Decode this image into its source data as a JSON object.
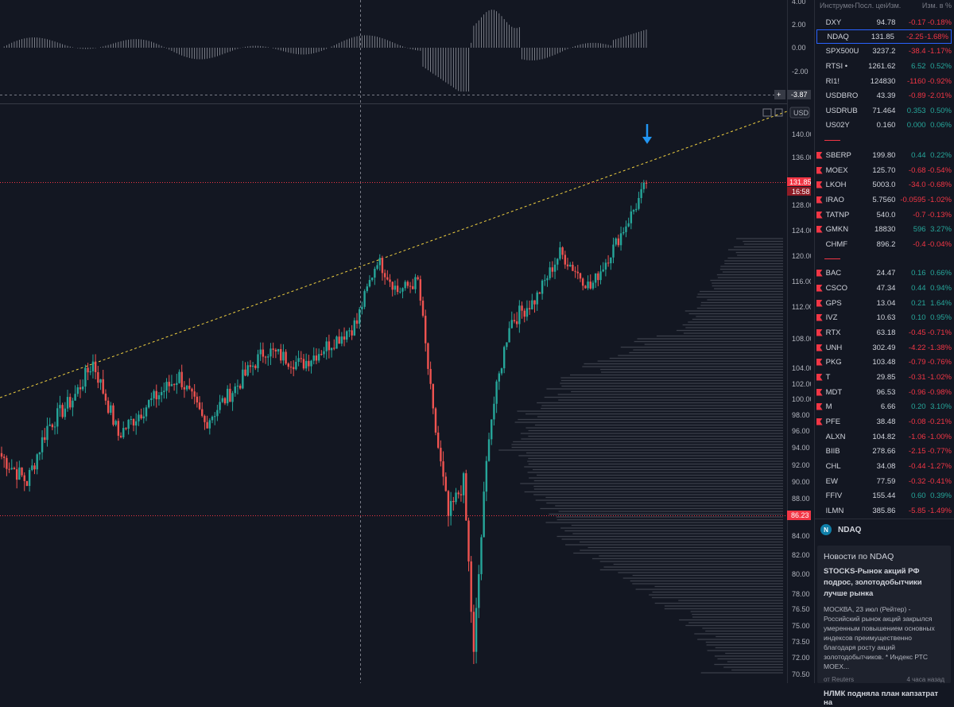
{
  "chart": {
    "currency": "USD",
    "price_label": "131.85",
    "countdown": "16:58",
    "level_label": "86.23",
    "oscillator_label": "-3.87",
    "price_ticks": [
      "140.00",
      "136.00",
      "132.00",
      "128.00",
      "124.00",
      "120.00",
      "116.00",
      "112.00",
      "108.00",
      "104.00",
      "102.00",
      "100.00",
      "98.00",
      "96.00",
      "94.00",
      "92.00",
      "90.00",
      "88.00",
      "86.00",
      "84.00",
      "82.00",
      "80.00",
      "78.00",
      "76.50",
      "75.00",
      "73.50",
      "72.00",
      "70.50"
    ],
    "osc_ticks": [
      "4.00",
      "2.00",
      "0.00",
      "-2.00"
    ],
    "colors": {
      "up": "#26a69a",
      "down": "#ef5350",
      "trend": "#f0d040",
      "level": "#f23645",
      "arrow": "#2196f3"
    }
  },
  "chart_data": {
    "type": "candlestick",
    "symbol": "NDAQ",
    "last_price": 131.85,
    "support_level": 86.23,
    "oscillator_last": -3.87,
    "y_range": [
      70.5,
      140
    ],
    "anchors": [
      {
        "i": 0,
        "c": 93.0
      },
      {
        "i": 10,
        "c": 90.0
      },
      {
        "i": 18,
        "c": 96.5
      },
      {
        "i": 28,
        "c": 100.0
      },
      {
        "i": 36,
        "c": 104.8
      },
      {
        "i": 46,
        "c": 95.5
      },
      {
        "i": 58,
        "c": 99.5
      },
      {
        "i": 70,
        "c": 103.0
      },
      {
        "i": 80,
        "c": 97.0
      },
      {
        "i": 92,
        "c": 101.5
      },
      {
        "i": 104,
        "c": 106.5
      },
      {
        "i": 118,
        "c": 104.5
      },
      {
        "i": 130,
        "c": 107.5
      },
      {
        "i": 140,
        "c": 110.0
      },
      {
        "i": 148,
        "c": 119.5
      },
      {
        "i": 156,
        "c": 114.5
      },
      {
        "i": 164,
        "c": 116.0
      },
      {
        "i": 170,
        "c": 98.0
      },
      {
        "i": 176,
        "c": 86.0
      },
      {
        "i": 182,
        "c": 90.0
      },
      {
        "i": 186,
        "c": 72.0
      },
      {
        "i": 192,
        "c": 96.0
      },
      {
        "i": 200,
        "c": 110.0
      },
      {
        "i": 210,
        "c": 113.0
      },
      {
        "i": 220,
        "c": 120.5
      },
      {
        "i": 232,
        "c": 115.0
      },
      {
        "i": 242,
        "c": 122.0
      },
      {
        "i": 250,
        "c": 128.0
      },
      {
        "i": 254,
        "c": 131.85
      }
    ]
  },
  "watchlist": {
    "headers": [
      "Инструмент",
      "Посл. цен",
      "Изм.",
      "Изм. в %"
    ],
    "rows": [
      {
        "sym": "DXY",
        "last": "94.78",
        "chg": "-0.17",
        "pct": "-0.18%",
        "dir": "neg",
        "flag": false
      },
      {
        "sym": "NDAQ",
        "last": "131.85",
        "chg": "-2.25",
        "pct": "-1.68%",
        "dir": "neg",
        "flag": false,
        "selected": true
      },
      {
        "sym": "SPX500USD",
        "last": "3237.2",
        "chg": "-38.4",
        "pct": "-1.17%",
        "dir": "neg",
        "flag": false
      },
      {
        "sym": "RTSI •",
        "last": "1261.62",
        "chg": "6.52",
        "pct": "0.52%",
        "dir": "pos",
        "flag": false
      },
      {
        "sym": "RI1!",
        "last": "124830",
        "chg": "-1160",
        "pct": "-0.92%",
        "dir": "neg",
        "flag": false
      },
      {
        "sym": "USDBRO",
        "last": "43.39",
        "chg": "-0.89",
        "pct": "-2.01%",
        "dir": "neg",
        "flag": false
      },
      {
        "sym": "USDRUB",
        "last": "71.464",
        "chg": "0.353",
        "pct": "0.50%",
        "dir": "pos",
        "flag": false
      },
      {
        "sym": "US02Y",
        "last": "0.160",
        "chg": "0.000",
        "pct": "0.06%",
        "dir": "pos",
        "flag": false
      },
      {
        "sym": "SBERP",
        "last": "199.80",
        "chg": "0.44",
        "pct": "0.22%",
        "dir": "pos",
        "flag": true
      },
      {
        "sym": "MOEX",
        "last": "125.70",
        "chg": "-0.68",
        "pct": "-0.54%",
        "dir": "neg",
        "flag": true
      },
      {
        "sym": "LKOH",
        "last": "5003.0",
        "chg": "-34.0",
        "pct": "-0.68%",
        "dir": "neg",
        "flag": true
      },
      {
        "sym": "IRAO",
        "last": "5.7560",
        "chg": "-0.0595",
        "pct": "-1.02%",
        "dir": "neg",
        "flag": true
      },
      {
        "sym": "TATNP",
        "last": "540.0",
        "chg": "-0.7",
        "pct": "-0.13%",
        "dir": "neg",
        "flag": true
      },
      {
        "sym": "GMKN",
        "last": "18830",
        "chg": "596",
        "pct": "3.27%",
        "dir": "pos",
        "flag": true
      },
      {
        "sym": "CHMF",
        "last": "896.2",
        "chg": "-0.4",
        "pct": "-0.04%",
        "dir": "neg",
        "flag": false
      },
      {
        "sym": "BAC",
        "last": "24.47",
        "chg": "0.16",
        "pct": "0.66%",
        "dir": "pos",
        "flag": true
      },
      {
        "sym": "CSCO",
        "last": "47.34",
        "chg": "0.44",
        "pct": "0.94%",
        "dir": "pos",
        "flag": true
      },
      {
        "sym": "GPS",
        "last": "13.04",
        "chg": "0.21",
        "pct": "1.64%",
        "dir": "pos",
        "flag": true
      },
      {
        "sym": "IVZ",
        "last": "10.63",
        "chg": "0.10",
        "pct": "0.95%",
        "dir": "pos",
        "flag": true
      },
      {
        "sym": "RTX",
        "last": "63.18",
        "chg": "-0.45",
        "pct": "-0.71%",
        "dir": "neg",
        "flag": true
      },
      {
        "sym": "UNH",
        "last": "302.49",
        "chg": "-4.22",
        "pct": "-1.38%",
        "dir": "neg",
        "flag": true
      },
      {
        "sym": "PKG",
        "last": "103.48",
        "chg": "-0.79",
        "pct": "-0.76%",
        "dir": "neg",
        "flag": true
      },
      {
        "sym": "T",
        "last": "29.85",
        "chg": "-0.31",
        "pct": "-1.02%",
        "dir": "neg",
        "flag": true
      },
      {
        "sym": "MDT",
        "last": "96.53",
        "chg": "-0.96",
        "pct": "-0.98%",
        "dir": "neg",
        "flag": true
      },
      {
        "sym": "M",
        "last": "6.66",
        "chg": "0.20",
        "pct": "3.10%",
        "dir": "pos",
        "flag": true
      },
      {
        "sym": "PFE",
        "last": "38.48",
        "chg": "-0.08",
        "pct": "-0.21%",
        "dir": "neg",
        "flag": true
      },
      {
        "sym": "ALXN",
        "last": "104.82",
        "chg": "-1.06",
        "pct": "-1.00%",
        "dir": "neg",
        "flag": false
      },
      {
        "sym": "BIIB",
        "last": "278.66",
        "chg": "-2.15",
        "pct": "-0.77%",
        "dir": "neg",
        "flag": false
      },
      {
        "sym": "CHL",
        "last": "34.08",
        "chg": "-0.44",
        "pct": "-1.27%",
        "dir": "neg",
        "flag": false
      },
      {
        "sym": "EW",
        "last": "77.59",
        "chg": "-0.32",
        "pct": "-0.41%",
        "dir": "neg",
        "flag": false
      },
      {
        "sym": "FFIV",
        "last": "155.44",
        "chg": "0.60",
        "pct": "0.39%",
        "dir": "pos",
        "flag": false
      },
      {
        "sym": "ILMN",
        "last": "385.86",
        "chg": "-5.85",
        "pct": "-1.49%",
        "dir": "neg",
        "flag": false
      }
    ]
  },
  "detail": {
    "symbol": "NDAQ",
    "news_title": "Новости по NDAQ",
    "item_title": "STOCKS-Рынок акций РФ подрос, золотодобытчики лучше рынка",
    "item_body": "МОСКВА, 23 июл (Рейтер) - Российский рынок акций закрылся умеренным повышением основных индексов преимущественно благодаря росту акций золотодобытчиков. * Индекс РТС MOEX...",
    "item_source": "от Reuters",
    "item_time": "4 часа назад",
    "item2_title": "НЛМК подняла план капзатрат на"
  }
}
